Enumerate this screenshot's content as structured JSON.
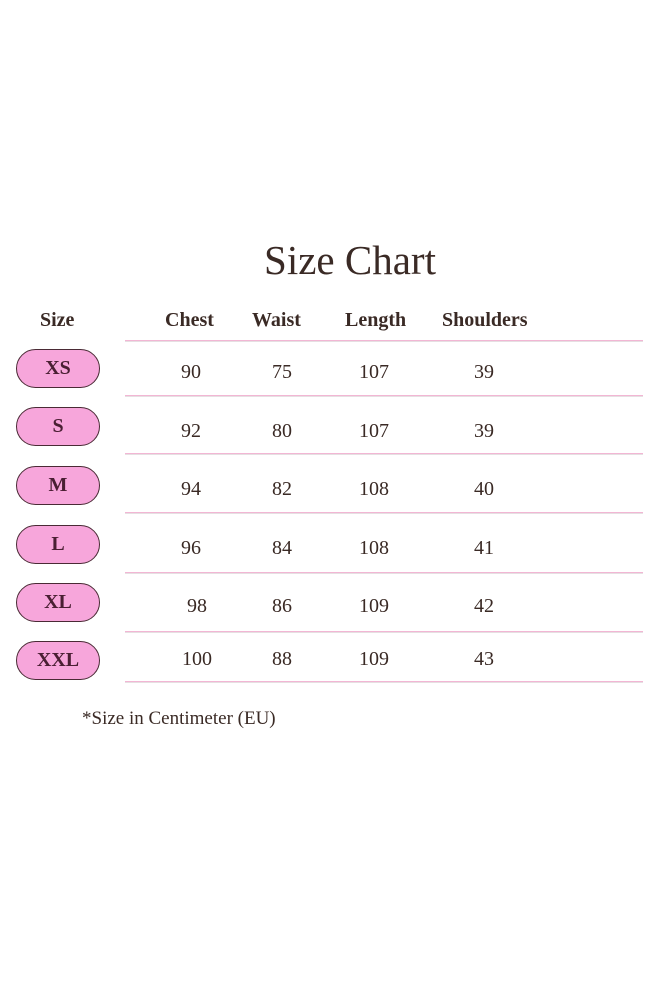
{
  "title": "Size Chart",
  "headers": [
    "Size",
    "Chest",
    "Waist",
    "Length",
    "Shoulders"
  ],
  "rows": [
    {
      "size": "XS",
      "chest": "90",
      "waist": "75",
      "length": "107",
      "shoulders": "39"
    },
    {
      "size": "S",
      "chest": "92",
      "waist": "80",
      "length": "107",
      "shoulders": "39"
    },
    {
      "size": "M",
      "chest": "94",
      "waist": "82",
      "length": "108",
      "shoulders": "40"
    },
    {
      "size": "L",
      "chest": "96",
      "waist": "84",
      "length": "108",
      "shoulders": "41"
    },
    {
      "size": "XL",
      "chest": "98",
      "waist": "86",
      "length": "109",
      "shoulders": "42"
    },
    {
      "size": "XXL",
      "chest": "100",
      "waist": "88",
      "length": "109",
      "shoulders": "43"
    }
  ],
  "note": "*Size in Centimeter (EU)",
  "colors": {
    "pill_fill": "#f7a6db",
    "pill_border": "#4a2a35",
    "row_line": "#f2b6d4"
  }
}
